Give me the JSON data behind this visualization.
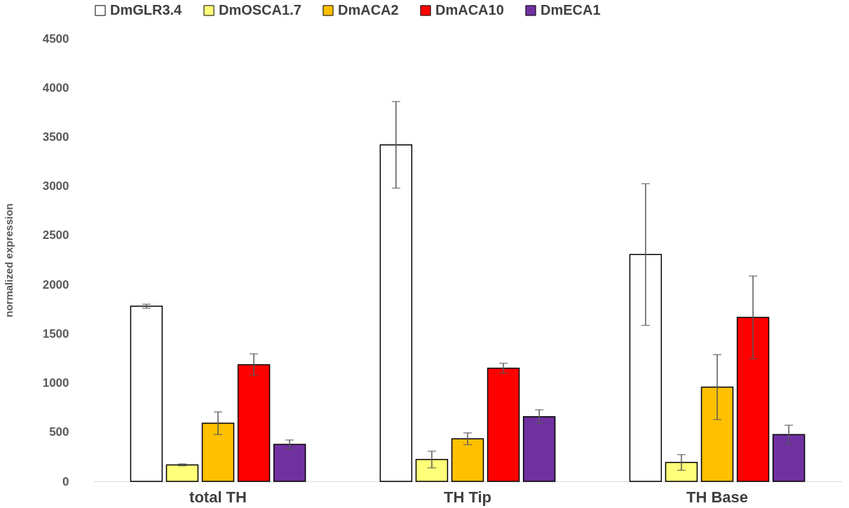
{
  "chart_data": {
    "type": "bar",
    "ylabel": "normalized expression",
    "categories": [
      "total TH",
      "TH Tip",
      "TH Base"
    ],
    "series": [
      {
        "name": "DmGLR3.4",
        "color": "#ffffff",
        "values": [
          1780,
          3420,
          2305
        ],
        "errors": [
          20,
          440,
          720
        ]
      },
      {
        "name": "DmOSCA1.7",
        "color": "#ffff79",
        "values": [
          168,
          222,
          192
        ],
        "errors": [
          10,
          85,
          80
        ]
      },
      {
        "name": "DmACA2",
        "color": "#ffc000",
        "values": [
          591,
          433,
          958
        ],
        "errors": [
          115,
          60,
          330
        ]
      },
      {
        "name": "DmACA10",
        "color": "#ff0000",
        "values": [
          1186,
          1150,
          1667
        ],
        "errors": [
          110,
          50,
          420
        ]
      },
      {
        "name": "DmECA1",
        "color": "#7030a0",
        "values": [
          375,
          657,
          476
        ],
        "errors": [
          45,
          70,
          95
        ]
      }
    ],
    "ylim": [
      0,
      4500
    ],
    "yticks": [
      0,
      500,
      1000,
      1500,
      2000,
      2500,
      3000,
      3500,
      4000,
      4500
    ],
    "grid": false,
    "legend": "top"
  }
}
